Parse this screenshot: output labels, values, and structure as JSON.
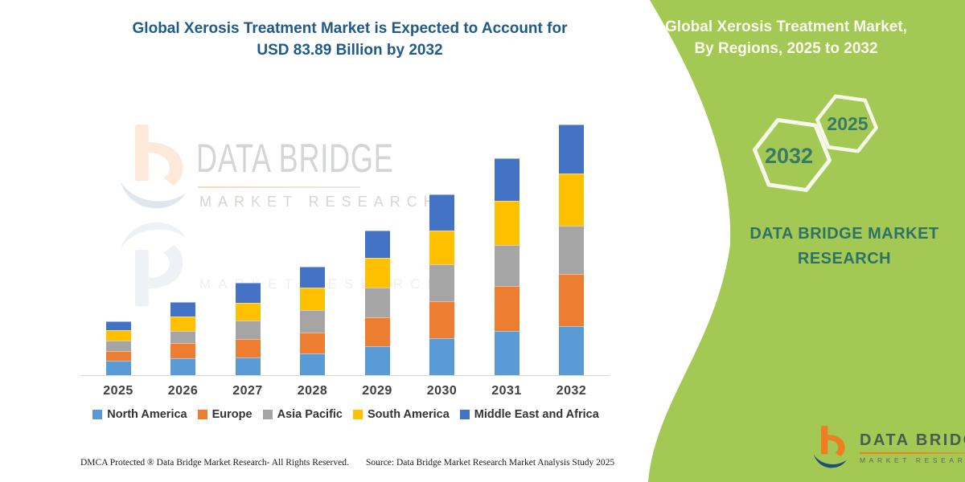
{
  "title": {
    "line1": "Global Xerosis Treatment Market is Expected to Account for",
    "line2": "USD 83.89 Billion by 2032"
  },
  "right_panel": {
    "heading_line1": "Global Xerosis Treatment Market,",
    "heading_line2": "By Regions, 2025 to 2032",
    "hexagons": [
      {
        "label": "2032"
      },
      {
        "label": "2025"
      }
    ],
    "brand_line1": "DATA BRIDGE MARKET",
    "brand_line2": "RESEARCH",
    "bg_color": "#a3c854",
    "brand_text_color": "#2e7266"
  },
  "logo": {
    "name": "DATA BRIDGE",
    "sub": "MARKET RESEARCH"
  },
  "watermark": {
    "brand": "DATA BRIDGE",
    "sub": "MARKET RESEARCH"
  },
  "footer": {
    "left": "DMCA Protected ® Data Bridge Market Research-  All Rights Reserved.",
    "source": "Source: Data Bridge Market Research  Market Analysis Study 2025"
  },
  "chart_data": {
    "type": "bar",
    "subtype": "stacked",
    "title": "Global Xerosis Treatment Market is Expected to Account for USD 83.89 Billion by 2032",
    "unit": "USD Billion",
    "categories": [
      "2025",
      "2026",
      "2027",
      "2028",
      "2029",
      "2030",
      "2031",
      "2032"
    ],
    "series": [
      {
        "name": "North America",
        "color": "#5b9bd5",
        "values": [
          4.8,
          5.6,
          5.9,
          7.2,
          9.6,
          12.4,
          14.9,
          16.3
        ]
      },
      {
        "name": "Europe",
        "color": "#ed7d31",
        "values": [
          3.3,
          5.1,
          6.1,
          7.1,
          9.7,
          12.3,
          14.9,
          17.5
        ]
      },
      {
        "name": "Asia Pacific",
        "color": "#a5a5a5",
        "values": [
          3.5,
          4.0,
          6.2,
          7.4,
          10.0,
          12.4,
          13.8,
          16.3
        ]
      },
      {
        "name": "South America",
        "color": "#ffc000",
        "values": [
          3.4,
          4.8,
          5.9,
          7.5,
          9.9,
          11.3,
          14.8,
          17.4
        ]
      },
      {
        "name": "Middle East and Africa",
        "color": "#4472c4",
        "values": [
          3.1,
          5.0,
          6.8,
          7.2,
          9.3,
          12.2,
          14.2,
          16.4
        ]
      }
    ],
    "totals_estimated": [
      18.1,
      24.5,
      30.9,
      36.4,
      48.5,
      60.6,
      72.6,
      83.89
    ],
    "stated_final_total": 83.89,
    "legend_position": "bottom",
    "grid": false,
    "y_axis_visible": false
  }
}
